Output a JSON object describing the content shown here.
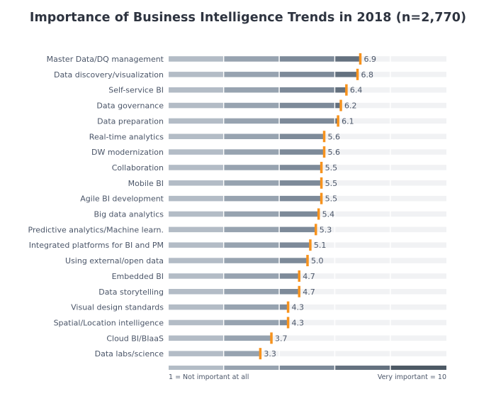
{
  "chart_data": {
    "type": "bar",
    "title": "Importance of Business Intelligence Trends in 2018 (n=2,770)",
    "xlim": [
      0,
      10
    ],
    "scale_min_label": "1 = Not important at all",
    "scale_max_label": "Very important = 10",
    "grid": false,
    "categories": [
      "Master Data/DQ management",
      "Data discovery/visualization",
      "Self-service BI",
      "Data governance",
      "Data preparation",
      "Real-time analytics",
      "DW modernization",
      "Collaboration",
      "Mobile BI",
      "Agile BI development",
      "Big data analytics",
      "Predictive analytics/Machine learn.",
      "Integrated platforms for BI and PM",
      "Using external/open data",
      "Embedded BI",
      "Data storytelling",
      "Visual design standards",
      "Spatial/Location intelligence",
      "Cloud BI/BIaaS",
      "Data labs/science"
    ],
    "values": [
      6.9,
      6.8,
      6.4,
      6.2,
      6.1,
      5.6,
      5.6,
      5.5,
      5.5,
      5.5,
      5.4,
      5.3,
      5.1,
      5.0,
      4.7,
      4.7,
      4.3,
      4.3,
      3.7,
      3.3
    ],
    "value_labels": [
      "6.9",
      "6.8",
      "6.4",
      "6.2",
      "6.1",
      "5.6",
      "5.6",
      "5.5",
      "5.5",
      "5.5",
      "5.4",
      "5.3",
      "5.1",
      "5.0",
      "4.7",
      "4.7",
      "4.3",
      "4.3",
      "3.7",
      "3.3"
    ],
    "colors": {
      "track": "#f1f2f4",
      "segments": [
        "#b3bcc6",
        "#97a3b0",
        "#7d8a99",
        "#64717f",
        "#4d5965"
      ],
      "marker": "#f7931e",
      "text": "#4a5568",
      "title": "#2e3440"
    }
  }
}
